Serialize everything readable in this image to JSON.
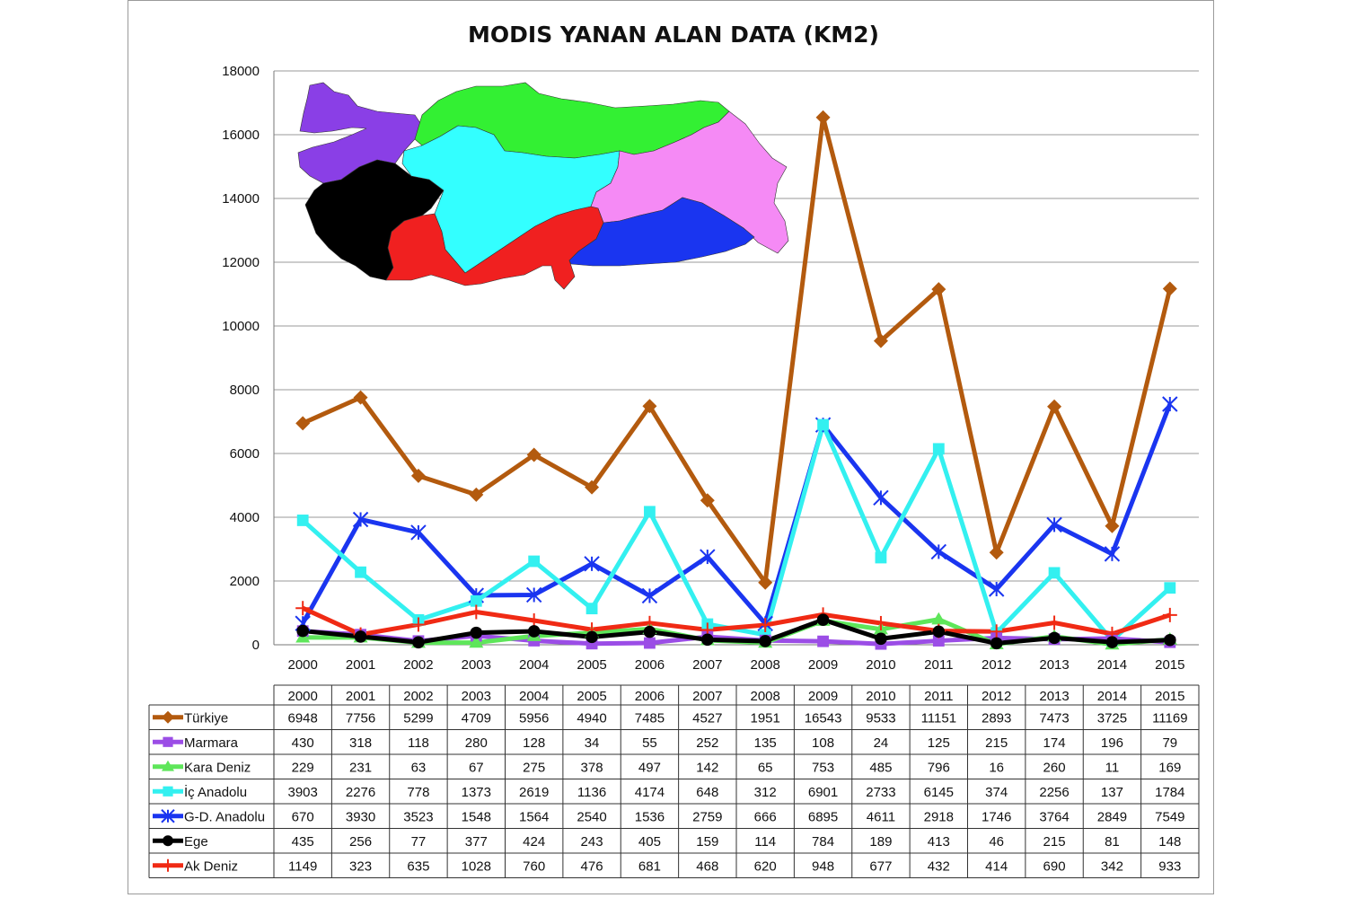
{
  "chart_data": {
    "type": "line",
    "title": "MODIS YANAN ALAN DATA (KM2)",
    "xlabel": "",
    "ylabel": "",
    "ylim": [
      0,
      18000
    ],
    "yticks": [
      0,
      2000,
      4000,
      6000,
      8000,
      10000,
      12000,
      14000,
      16000,
      18000
    ],
    "grid": true,
    "legend": "data-table-below",
    "x": [
      "2000",
      "2001",
      "2002",
      "2003",
      "2004",
      "2005",
      "2006",
      "2007",
      "2008",
      "2009",
      "2010",
      "2011",
      "2012",
      "2013",
      "2014",
      "2015"
    ],
    "series": [
      {
        "name": "Türkiye",
        "color": "#b35a0e",
        "marker": "diamond",
        "values": [
          6948,
          7756,
          5299,
          4709,
          5956,
          4940,
          7485,
          4527,
          1951,
          16543,
          9533,
          11151,
          2893,
          7473,
          3725,
          11169
        ]
      },
      {
        "name": "Marmara",
        "color": "#9b4de6",
        "marker": "square",
        "values": [
          430,
          318,
          118,
          280,
          128,
          34,
          55,
          252,
          135,
          108,
          24,
          125,
          215,
          174,
          196,
          79
        ]
      },
      {
        "name": "Kara Deniz",
        "color": "#5ee65a",
        "marker": "triangle",
        "values": [
          229,
          231,
          63,
          67,
          275,
          378,
          497,
          142,
          65,
          753,
          485,
          796,
          16,
          260,
          11,
          169
        ]
      },
      {
        "name": "İç Anadolu",
        "color": "#33f0f0",
        "marker": "square",
        "values": [
          3903,
          2276,
          778,
          1373,
          2619,
          1136,
          4174,
          648,
          312,
          6901,
          2733,
          6145,
          374,
          2256,
          137,
          1784
        ]
      },
      {
        "name": "G-D. Anadolu",
        "color": "#1a35f0",
        "marker": "star",
        "values": [
          670,
          3930,
          3523,
          1548,
          1564,
          2540,
          1536,
          2759,
          666,
          6895,
          4611,
          2918,
          1746,
          3764,
          2849,
          7549
        ]
      },
      {
        "name": "Ege",
        "color": "#000000",
        "marker": "circle",
        "values": [
          435,
          256,
          77,
          377,
          424,
          243,
          405,
          159,
          114,
          784,
          189,
          413,
          46,
          215,
          81,
          148
        ]
      },
      {
        "name": "Ak Deniz",
        "color": "#f02a14",
        "marker": "plus",
        "values": [
          1149,
          323,
          635,
          1028,
          760,
          476,
          681,
          468,
          620,
          948,
          677,
          432,
          414,
          690,
          342,
          933
        ]
      }
    ]
  },
  "map_regions": [
    {
      "name": "marmara-region",
      "color": "#8a3fe6"
    },
    {
      "name": "karadeniz-region",
      "color": "#33f033"
    },
    {
      "name": "ege-region",
      "color": "#000000"
    },
    {
      "name": "ic-anadolu-region",
      "color": "#33ffff"
    },
    {
      "name": "dogu-anadolu-region",
      "color": "#f58af5"
    },
    {
      "name": "akdeniz-region",
      "color": "#f02020"
    },
    {
      "name": "gd-anadolu-region",
      "color": "#1a35f0"
    }
  ]
}
